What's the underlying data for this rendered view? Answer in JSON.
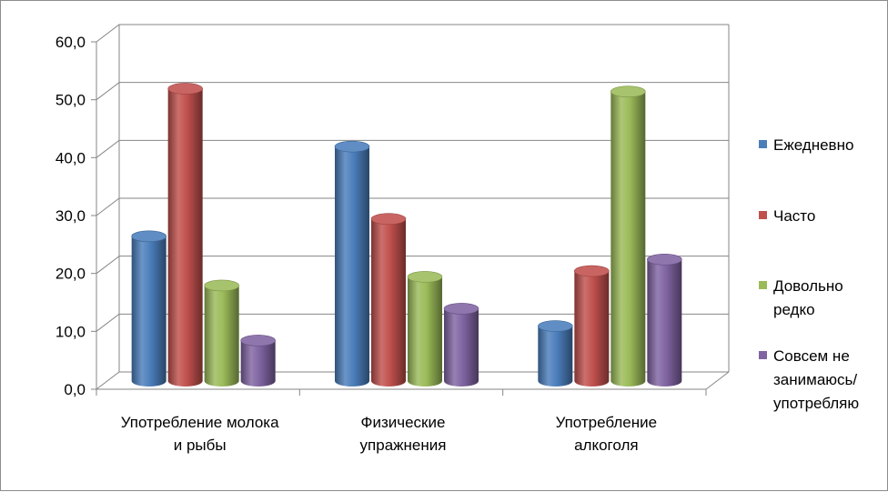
{
  "chart_data": {
    "type": "bar",
    "style": "3d-cylinder",
    "categories": [
      [
        "Употребление молока",
        "и рыбы"
      ],
      [
        "Физические",
        "упражнения"
      ],
      [
        "Употребление",
        "алкоголя"
      ]
    ],
    "series": [
      {
        "name": "Ежедневно",
        "legend_lines": [
          "Ежедневно"
        ],
        "color": "#4a7ebb",
        "values": [
          25,
          40.5,
          9.5
        ]
      },
      {
        "name": "Часто",
        "legend_lines": [
          "Часто"
        ],
        "color": "#c0504d",
        "values": [
          50.5,
          28,
          19
        ]
      },
      {
        "name": "Довольно редко",
        "legend_lines": [
          "Довольно",
          "редко"
        ],
        "color": "#9bbb59",
        "values": [
          16.5,
          18,
          50
        ]
      },
      {
        "name": "Совсем не занимаюсь/ употребляю",
        "legend_lines": [
          "Совсем не",
          "занимаюсь/",
          "употребляю"
        ],
        "color": "#8064a2",
        "values": [
          7,
          12.5,
          21
        ]
      }
    ],
    "yticks": [
      "0,0",
      "10,0",
      "20,0",
      "30,0",
      "40,0",
      "50,0",
      "60,0"
    ],
    "ylim": [
      0,
      60
    ],
    "grid": true,
    "legend_position": "right",
    "title": "",
    "xlabel": "",
    "ylabel": ""
  }
}
